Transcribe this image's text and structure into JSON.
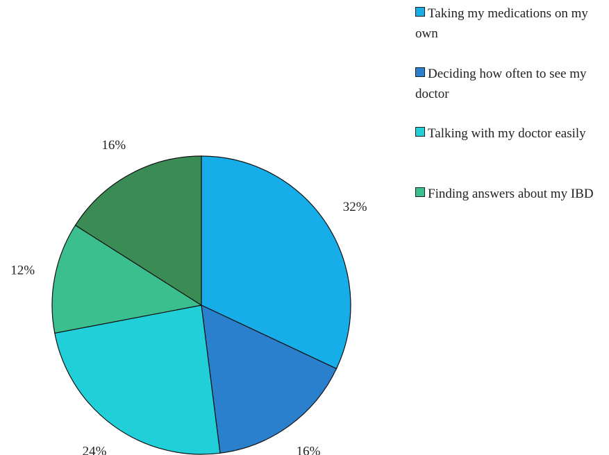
{
  "chart_data": {
    "type": "pie",
    "categories": [
      "Taking my medications on my own",
      "Deciding how often to see my doctor",
      "Talking with my doctor easily",
      "Finding answers about my IBD",
      null
    ],
    "values": [
      32,
      16,
      24,
      12,
      16
    ],
    "value_labels": [
      "32%",
      "16%",
      "24%",
      "12%",
      "16%"
    ],
    "colors": [
      "#16ade9",
      "#2a80cc",
      "#21cfd9",
      "#3cbf8e",
      "#3b8b54"
    ]
  }
}
